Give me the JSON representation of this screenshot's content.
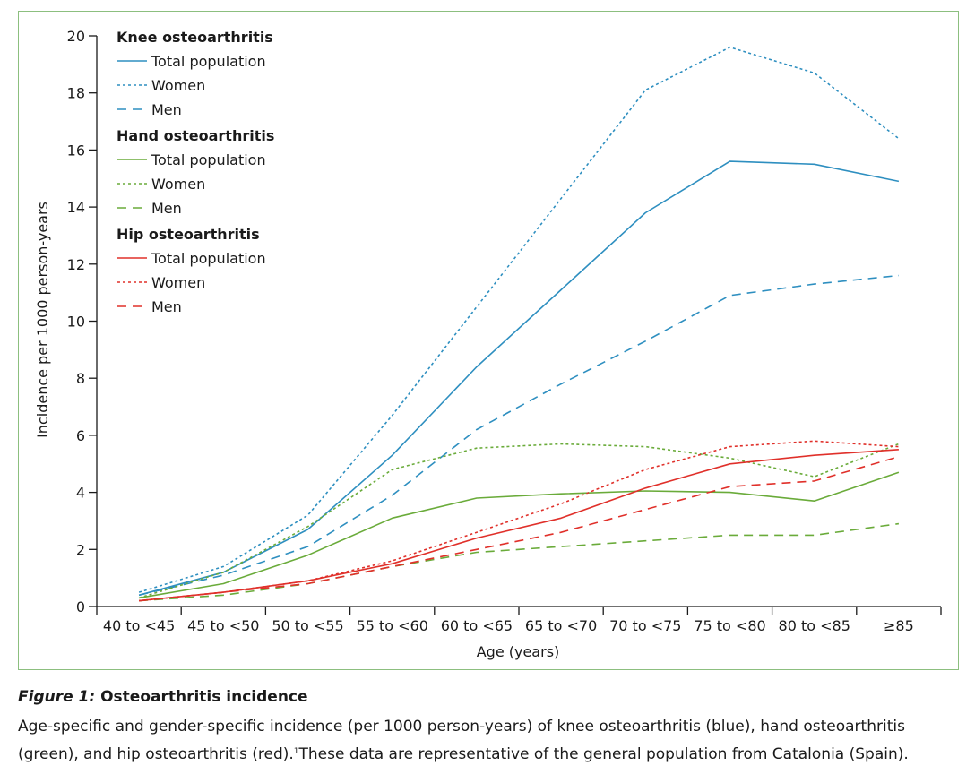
{
  "colors": {
    "knee": "#2e8fc0",
    "hand": "#6aab3a",
    "hip": "#e0302a",
    "frame": "#8cbf7f",
    "axis": "#1a1a1a"
  },
  "chart_data": {
    "type": "line",
    "xlabel": "Age (years)",
    "ylabel": "Incidence per 1000 person-years",
    "ylim": [
      0,
      20
    ],
    "yticks": [
      "0",
      "2",
      "4",
      "6",
      "8",
      "10",
      "12",
      "14",
      "16",
      "18",
      "20"
    ],
    "categories": [
      "40 to <45",
      "45 to <50",
      "50 to <55",
      "55 to <60",
      "60 to <65",
      "65 to <70",
      "70 to <75",
      "75 to <80",
      "80 to <85",
      "≥85"
    ],
    "grid": false,
    "legend_position": "top-left",
    "groups": [
      {
        "title": "Knee osteoarthritis",
        "color_key": "knee",
        "series": [
          {
            "name": "Total population",
            "style": "solid",
            "values": [
              0.4,
              1.2,
              2.7,
              5.3,
              8.4,
              11.1,
              13.8,
              15.6,
              15.5,
              14.9
            ]
          },
          {
            "name": "Women",
            "style": "dotted",
            "values": [
              0.5,
              1.4,
              3.2,
              6.7,
              10.5,
              14.3,
              18.1,
              19.6,
              18.7,
              16.4
            ]
          },
          {
            "name": "Men",
            "style": "dashed",
            "values": [
              0.4,
              1.1,
              2.1,
              3.9,
              6.2,
              7.8,
              9.3,
              10.9,
              11.3,
              11.6
            ]
          }
        ]
      },
      {
        "title": "Hand osteoarthritis",
        "color_key": "hand",
        "series": [
          {
            "name": "Total population",
            "style": "solid",
            "values": [
              0.3,
              0.8,
              1.8,
              3.1,
              3.8,
              3.95,
              4.05,
              4.0,
              3.7,
              4.7
            ]
          },
          {
            "name": "Women",
            "style": "dotted",
            "values": [
              0.3,
              1.2,
              2.8,
              4.8,
              5.55,
              5.7,
              5.6,
              5.2,
              4.55,
              5.7
            ]
          },
          {
            "name": "Men",
            "style": "dashed",
            "values": [
              0.2,
              0.4,
              0.8,
              1.4,
              1.9,
              2.1,
              2.3,
              2.5,
              2.5,
              2.9
            ]
          }
        ]
      },
      {
        "title": "Hip osteoarthritis",
        "color_key": "hip",
        "series": [
          {
            "name": "Total population",
            "style": "solid",
            "values": [
              0.2,
              0.5,
              0.9,
              1.5,
              2.4,
              3.1,
              4.15,
              5.0,
              5.3,
              5.5
            ]
          },
          {
            "name": "Women",
            "style": "dotted",
            "values": [
              0.2,
              0.5,
              0.9,
              1.6,
              2.6,
              3.6,
              4.8,
              5.6,
              5.8,
              5.6
            ]
          },
          {
            "name": "Men",
            "style": "dashed",
            "values": [
              0.2,
              0.5,
              0.8,
              1.4,
              2.0,
              2.6,
              3.4,
              4.2,
              4.4,
              5.25
            ]
          }
        ]
      }
    ]
  },
  "caption": {
    "label": "Figure 1:",
    "title": "Osteoarthritis incidence",
    "text_before": "Age-specific and gender-specific incidence (per 1000 person-years) of knee osteoarthritis (blue), hand osteoarthritis (green), and hip osteoarthritis (red).",
    "reference": "1",
    "text_after": "These data are representative of the general population from Catalonia (Spain)."
  }
}
